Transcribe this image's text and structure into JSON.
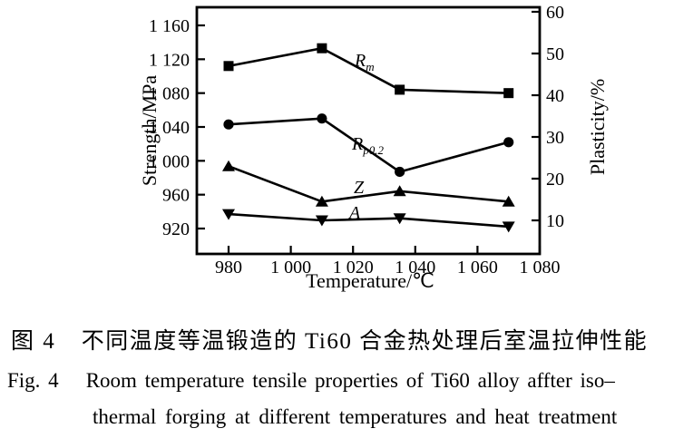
{
  "figure": {
    "caption_cn": {
      "label": "图 4",
      "text": "不同温度等温锻造的 Ti60 合金热处理后室温拉伸性能"
    },
    "caption_en_line1": {
      "label": "Fig. 4",
      "text": "Room temperature tensile properties of Ti60 alloy affter iso–"
    },
    "caption_en_line2": "thermal forging at different temperatures and heat treatment"
  },
  "chart_data": {
    "type": "line",
    "title": "",
    "xlabel": "Temperature/℃",
    "ylabel_left": "Strength/MPa",
    "ylabel_right": "Plasticity/%",
    "x": [
      980,
      1010,
      1035,
      1070
    ],
    "x_tick_values": [
      980,
      1000,
      1020,
      1040,
      1060,
      1080
    ],
    "x_ticks": [
      "980",
      "1 000",
      "1 020",
      "1 040",
      "1 060",
      "1 080"
    ],
    "left_tick_values": [
      1160,
      1120,
      1080,
      1040,
      1000,
      960,
      920
    ],
    "left_ticks": [
      "1 160",
      "1 120",
      "1 080",
      "1 040",
      "1 000",
      "960",
      "920"
    ],
    "right_tick_values": [
      60,
      50,
      40,
      30,
      20,
      10
    ],
    "right_ticks": [
      "60",
      "50",
      "40",
      "30",
      "20",
      "10"
    ],
    "xlim": [
      969,
      1080
    ],
    "ylim_left": [
      889,
      1182
    ],
    "ylim_right": [
      2,
      61
    ],
    "grid": false,
    "legend_position": "inline-labels",
    "series": [
      {
        "name": "Rm",
        "label_main": "R",
        "label_sub": "m",
        "axis": "left",
        "marker": "square",
        "values": [
          1112,
          1133,
          1084,
          1080
        ]
      },
      {
        "name": "Rp0.2",
        "label_main": "R",
        "label_sub": "p0.2",
        "axis": "left",
        "marker": "circle",
        "values": [
          1043,
          1050,
          987,
          1022
        ]
      },
      {
        "name": "Z",
        "label_main": "Z",
        "label_sub": "",
        "axis": "right",
        "marker": "triangle-up",
        "values": [
          23,
          14.5,
          17,
          14.5
        ]
      },
      {
        "name": "A",
        "label_main": "A",
        "label_sub": "",
        "axis": "right",
        "marker": "triangle-down",
        "values": [
          11.5,
          10,
          10.5,
          8.5
        ]
      }
    ],
    "series_label_positions": [
      [
        391,
        73
      ],
      [
        388,
        165
      ],
      [
        390,
        213
      ],
      [
        385,
        241
      ]
    ],
    "colors": {
      "foreground": "#000000",
      "background": "#ffffff"
    }
  }
}
